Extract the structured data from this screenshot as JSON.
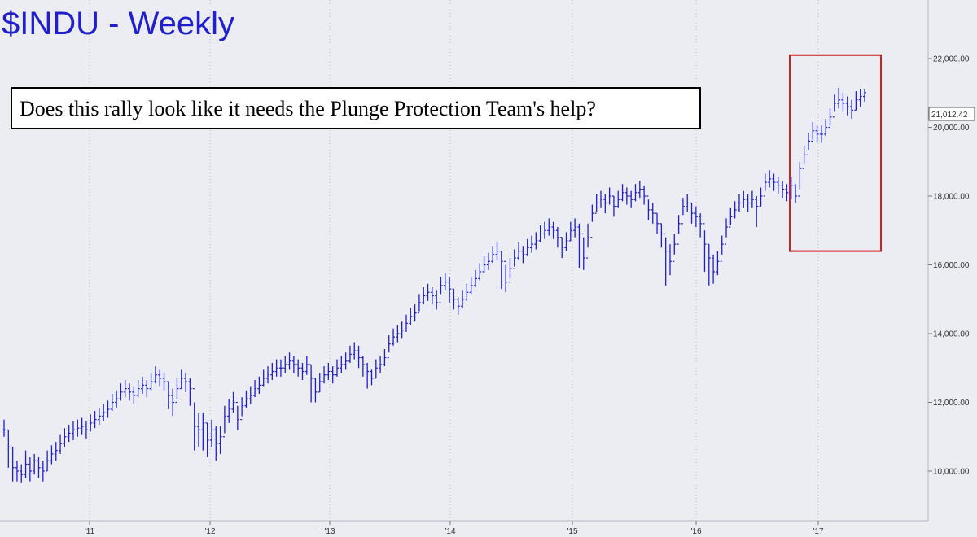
{
  "chart_data": {
    "type": "bar",
    "style": "OHLC weekly price bars",
    "title": "$INDU - Weekly",
    "annotation": "Does this rally look like it needs the Plunge Protection Team's help?",
    "y_ticks": [
      10000,
      12000,
      14000,
      16000,
      18000,
      20000,
      22000
    ],
    "y_tick_labels": [
      "10,000.00",
      "12,000.00",
      "14,000.00",
      "16,000.00",
      "18,000.00",
      "20,000.00",
      "22,000.00"
    ],
    "ylim": [
      8500,
      23400
    ],
    "x_ticks": [
      "'11",
      "'12",
      "'13",
      "'14",
      "'15",
      "'16",
      "'17"
    ],
    "last_price_label": "21,012.42",
    "grid": "dotted vertical lines at year ticks",
    "highlight_box": {
      "color": "#cc2222",
      "y_range": [
        16400,
        22100
      ]
    },
    "colors": {
      "bars": "#1f1fcf",
      "title": "#1f1fcf",
      "highlight": "#cc2222",
      "background": "#ecedf3"
    },
    "series": [
      {
        "name": "",
        "closes": [
          11200,
          10700,
          10100,
          10000,
          9900,
          10200,
          10000,
          10300,
          10100,
          10000,
          10300,
          10500,
          10600,
          10800,
          11000,
          11100,
          11200,
          11250,
          11300,
          11200,
          11400,
          11500,
          11600,
          11700,
          11800,
          12000,
          12100,
          12300,
          12400,
          12300,
          12200,
          12400,
          12500,
          12400,
          12600,
          12800,
          12700,
          12600,
          12200,
          12000,
          12400,
          12700,
          12600,
          12400,
          11300,
          11200,
          11400,
          10900,
          11200,
          10800,
          11000,
          11600,
          11800,
          12000,
          11500,
          11900,
          12100,
          12200,
          12400,
          12500,
          12700,
          12800,
          12900,
          13000,
          13000,
          13100,
          13200,
          13100,
          13000,
          12900,
          13100,
          12700,
          12300,
          12600,
          12800,
          12900,
          12800,
          13000,
          13100,
          13200,
          13400,
          13500,
          13300,
          13100,
          12900,
          12700,
          13000,
          13100,
          13300,
          13700,
          13900,
          14000,
          14100,
          14300,
          14500,
          14600,
          14900,
          15100,
          15200,
          15100,
          14900,
          15400,
          15500,
          15300,
          15000,
          14800,
          15000,
          15200,
          15400,
          15600,
          15800,
          16000,
          16100,
          16300,
          16400,
          16100,
          15500,
          15900,
          16200,
          16400,
          16300,
          16500,
          16600,
          16700,
          16900,
          17000,
          17100,
          17000,
          16800,
          16500,
          16700,
          17000,
          17100,
          16900,
          16200,
          16800,
          17500,
          17800,
          17900,
          17800,
          18000,
          17700,
          17900,
          18100,
          18000,
          17900,
          18100,
          18200,
          18000,
          17600,
          17500,
          17200,
          16900,
          16400,
          16100,
          16600,
          17200,
          17700,
          17800,
          17500,
          17400,
          17200,
          16600,
          16200,
          15800,
          16100,
          16600,
          17100,
          17400,
          17600,
          17800,
          17900,
          17800,
          17900,
          17700,
          18000,
          18400,
          18500,
          18400,
          18300,
          18200,
          18100,
          18300,
          18000,
          18800,
          19200,
          19600,
          19900,
          19800,
          19800,
          20000,
          20300,
          20700,
          20800,
          20700,
          20600,
          20500,
          20800,
          20900,
          21012
        ],
        "lows": [
          11000,
          10100,
          9700,
          9700,
          9650,
          9800,
          9700,
          9900,
          9800,
          9700,
          10000,
          10200,
          10300,
          10500,
          10700,
          10850,
          10900,
          11000,
          11050,
          10950,
          11150,
          11250,
          11350,
          11450,
          11550,
          11750,
          11850,
          12050,
          12150,
          12050,
          11950,
          12150,
          12250,
          12150,
          12350,
          12550,
          12450,
          12350,
          11800,
          11600,
          12100,
          12400,
          12300,
          11900,
          10600,
          10700,
          10600,
          10400,
          10700,
          10300,
          10500,
          11100,
          11400,
          11700,
          11200,
          11600,
          11850,
          11950,
          12150,
          12250,
          12450,
          12550,
          12650,
          12750,
          12750,
          12850,
          12950,
          12850,
          12750,
          12650,
          12800,
          12000,
          12000,
          12300,
          12550,
          12650,
          12550,
          12750,
          12850,
          12950,
          13150,
          13250,
          13000,
          12750,
          12400,
          12500,
          12700,
          12850,
          13050,
          13450,
          13650,
          13750,
          13850,
          14050,
          14250,
          14350,
          14650,
          14850,
          14950,
          14850,
          14700,
          15150,
          15250,
          14900,
          14700,
          14550,
          14750,
          14950,
          15150,
          15350,
          15550,
          15750,
          15850,
          16050,
          16150,
          15300,
          15200,
          15600,
          15950,
          16150,
          16050,
          16250,
          16350,
          16450,
          16650,
          16750,
          16850,
          16750,
          16500,
          16200,
          16400,
          16700,
          16800,
          15900,
          15850,
          16500,
          17250,
          17550,
          17650,
          17500,
          17750,
          17400,
          17650,
          17850,
          17750,
          17650,
          17850,
          17950,
          17750,
          17300,
          17200,
          16900,
          16500,
          15400,
          15700,
          16300,
          16900,
          17450,
          17550,
          17200,
          17100,
          16800,
          15800,
          15400,
          15450,
          15700,
          16300,
          16800,
          17150,
          17350,
          17550,
          17650,
          17550,
          17650,
          17100,
          17700,
          18150,
          18250,
          18150,
          18050,
          17950,
          17850,
          17900,
          17800,
          18200,
          18950,
          19350,
          19650,
          19550,
          19550,
          19750,
          20050,
          20450,
          20550,
          20450,
          20350,
          20250,
          20500,
          20600,
          20750
        ],
        "highs": [
          11500,
          11200,
          10700,
          10300,
          10200,
          10600,
          10400,
          10500,
          10400,
          10300,
          10600,
          10750,
          10850,
          11050,
          11250,
          11350,
          11450,
          11500,
          11550,
          11450,
          11650,
          11750,
          11850,
          11950,
          12050,
          12250,
          12350,
          12550,
          12650,
          12550,
          12450,
          12650,
          12750,
          12650,
          12850,
          13050,
          12950,
          12850,
          12600,
          12400,
          12700,
          12950,
          12850,
          12700,
          12000,
          11700,
          11700,
          11400,
          11500,
          11300,
          11300,
          11900,
          12100,
          12300,
          11900,
          12150,
          12350,
          12450,
          12650,
          12750,
          12950,
          13050,
          13150,
          13250,
          13250,
          13350,
          13450,
          13350,
          13250,
          13150,
          13350,
          13100,
          12700,
          12850,
          13050,
          13150,
          13050,
          13250,
          13350,
          13450,
          13650,
          13750,
          13650,
          13350,
          13150,
          12950,
          13250,
          13350,
          13550,
          13950,
          14150,
          14250,
          14350,
          14550,
          14750,
          14850,
          15150,
          15350,
          15450,
          15350,
          15250,
          15650,
          15750,
          15650,
          15300,
          15050,
          15250,
          15450,
          15650,
          15850,
          16050,
          16250,
          16350,
          16550,
          16650,
          16400,
          16000,
          16200,
          16450,
          16650,
          16550,
          16750,
          16850,
          16950,
          17150,
          17250,
          17350,
          17250,
          17100,
          16800,
          16950,
          17250,
          17350,
          17200,
          16800,
          17200,
          17750,
          18050,
          18150,
          18050,
          18250,
          18000,
          18150,
          18350,
          18250,
          18150,
          18350,
          18450,
          18300,
          17900,
          17800,
          17500,
          17200,
          16800,
          16600,
          16900,
          17450,
          17950,
          18050,
          17800,
          17700,
          17500,
          17000,
          16600,
          16300,
          16400,
          16850,
          17350,
          17650,
          17850,
          18050,
          18150,
          18050,
          18150,
          18000,
          18250,
          18650,
          18750,
          18650,
          18550,
          18450,
          18350,
          18550,
          18350,
          19000,
          19450,
          19850,
          20150,
          20050,
          20050,
          20250,
          20550,
          20950,
          21150,
          21000,
          20900,
          20800,
          21050,
          21100,
          21100
        ]
      }
    ]
  }
}
